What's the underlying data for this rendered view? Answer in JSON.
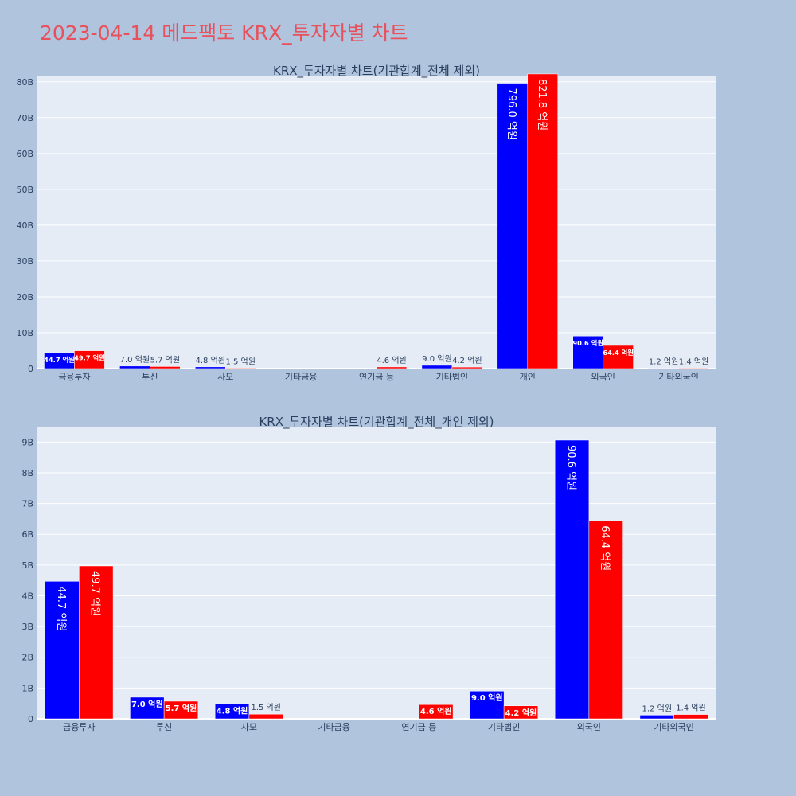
{
  "page": {
    "title": "2023-04-14 메드팩토 KRX_투자자별 차트"
  },
  "colors": {
    "buy": "#0000ff",
    "sell": "#ff0000",
    "plot_bg": "#e5ecf6",
    "paper_bg": "#b0c4de",
    "title": "#e8505b"
  },
  "chart_data": [
    {
      "type": "bar",
      "title": "KRX_투자자별 차트(기관합계_전체 제외)",
      "categories": [
        "금융투자",
        "투신",
        "사모",
        "기타금융",
        "연기금 등",
        "기타법인",
        "개인",
        "외국인",
        "기타외국인"
      ],
      "series": [
        {
          "values": [
            4.47,
            0.7,
            0.48,
            0.0,
            0.0,
            0.9,
            79.6,
            9.06,
            0.12
          ],
          "labels": [
            "44.7 억원",
            "7.0 억원",
            "4.8 억원",
            "",
            "",
            "9.0 억원",
            "796.0 억원",
            "90.6 억원",
            "1.2 억원"
          ]
        },
        {
          "values": [
            4.97,
            0.57,
            0.15,
            0.0,
            0.46,
            0.42,
            82.18,
            6.44,
            0.14
          ],
          "labels": [
            "49.7 억원",
            "5.7 억원",
            "1.5 억원",
            "",
            "4.6 억원",
            "4.2 억원",
            "821.8 억원",
            "64.4 억원",
            "1.4 억원"
          ]
        }
      ],
      "yticks": [
        0,
        10,
        20,
        30,
        40,
        50,
        60,
        70,
        80
      ],
      "ytick_labels": [
        "0",
        "10B",
        "20B",
        "30B",
        "40B",
        "50B",
        "60B",
        "70B",
        "80B"
      ],
      "ylim": [
        0,
        81.5
      ],
      "grid": true,
      "legend": "none"
    },
    {
      "type": "bar",
      "title": "KRX_투자자별 차트(기관합계_전체_개인 제외)",
      "categories": [
        "금융투자",
        "투신",
        "사모",
        "기타금융",
        "연기금 등",
        "기타법인",
        "외국인",
        "기타외국인"
      ],
      "series": [
        {
          "values": [
            4.47,
            0.7,
            0.48,
            0.0,
            0.0,
            0.9,
            9.06,
            0.12
          ],
          "labels": [
            "44.7 억원",
            "7.0 억원",
            "4.8 억원",
            "",
            "",
            "9.0 억원",
            "90.6 억원",
            "1.2 억원"
          ]
        },
        {
          "values": [
            4.97,
            0.57,
            0.15,
            0.0,
            0.46,
            0.42,
            6.44,
            0.14
          ],
          "labels": [
            "49.7 억원",
            "5.7 억원",
            "1.5 억원",
            "",
            "4.6 억원",
            "4.2 억원",
            "64.4 억원",
            "1.4 억원"
          ]
        }
      ],
      "yticks": [
        0,
        1,
        2,
        3,
        4,
        5,
        6,
        7,
        8,
        9
      ],
      "ytick_labels": [
        "0",
        "1B",
        "2B",
        "3B",
        "4B",
        "5B",
        "6B",
        "7B",
        "8B",
        "9B"
      ],
      "ylim": [
        0,
        9.5
      ],
      "grid": true,
      "legend": "none"
    }
  ]
}
